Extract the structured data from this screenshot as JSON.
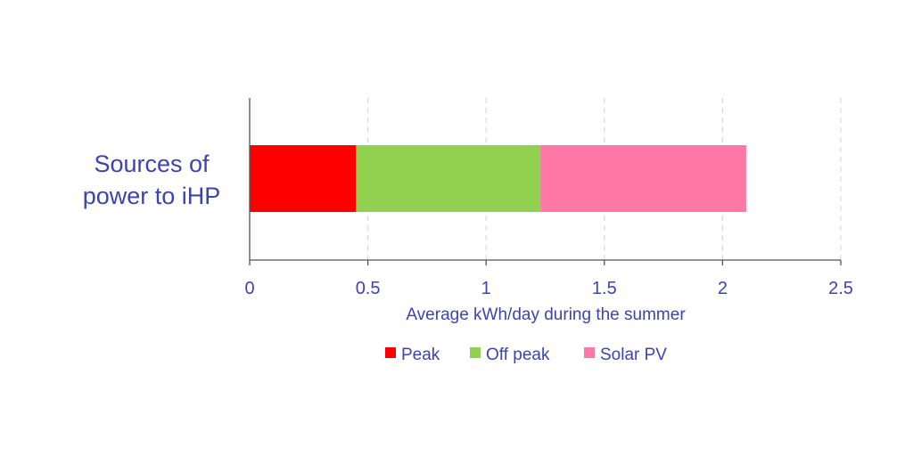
{
  "chart_data": {
    "type": "bar",
    "orientation": "horizontal",
    "stacked": true,
    "categories": [
      "Sources of power to iHP"
    ],
    "category_label_lines": [
      "Sources of",
      "power to iHP"
    ],
    "series": [
      {
        "name": "Peak",
        "values": [
          0.45
        ],
        "color": "#ff0000"
      },
      {
        "name": "Off peak",
        "values": [
          0.78
        ],
        "color": "#92d050"
      },
      {
        "name": "Solar PV",
        "values": [
          0.87
        ],
        "color": "#ff77a5"
      }
    ],
    "title": "",
    "xlabel": "Average kWh/day during the summer",
    "ylabel": "",
    "xlim": [
      0,
      2.5
    ],
    "xticks": [
      0,
      0.5,
      1,
      1.5,
      2,
      2.5
    ],
    "xtick_labels": [
      "0",
      "0.5",
      "1",
      "1.5",
      "2",
      "2.5"
    ],
    "grid": "vertical dashed",
    "legend_position": "bottom",
    "text_color": "#3d44b0"
  }
}
